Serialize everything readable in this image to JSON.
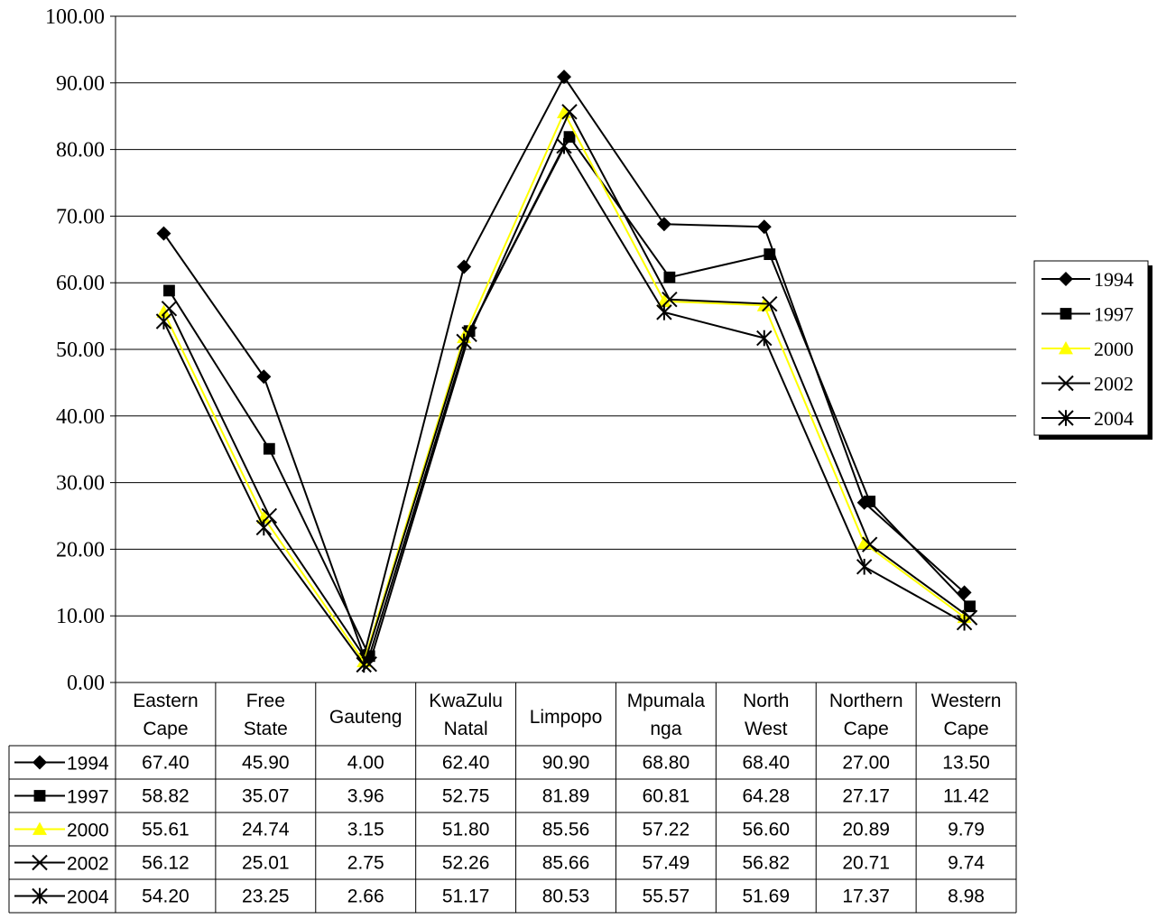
{
  "chart_data": {
    "type": "line",
    "title": "",
    "xlabel": "",
    "ylabel": "",
    "ylim": [
      0,
      100
    ],
    "yticks": [
      "0.00",
      "10.00",
      "20.00",
      "30.00",
      "40.00",
      "50.00",
      "60.00",
      "70.00",
      "80.00",
      "90.00",
      "100.00"
    ],
    "grid": true,
    "legend": "right",
    "categories": [
      [
        "Eastern",
        "Cape"
      ],
      [
        "Free",
        "State"
      ],
      [
        "Gauteng"
      ],
      [
        "KwaZulu",
        "Natal"
      ],
      [
        "Limpopo"
      ],
      [
        "Mpumala",
        "nga"
      ],
      [
        "North",
        "West"
      ],
      [
        "Northern",
        "Cape"
      ],
      [
        "Western",
        "Cape"
      ]
    ],
    "series": [
      {
        "name": "1994",
        "marker": "diamond",
        "color": "#000000",
        "values": [
          67.4,
          45.9,
          4.0,
          62.4,
          90.9,
          68.8,
          68.4,
          27.0,
          13.5
        ],
        "labels": [
          "67.40",
          "45.90",
          "4.00",
          "62.40",
          "90.90",
          "68.80",
          "68.40",
          "27.00",
          "13.50"
        ]
      },
      {
        "name": "1997",
        "marker": "square",
        "color": "#000000",
        "values": [
          58.82,
          35.07,
          3.96,
          52.75,
          81.89,
          60.81,
          64.28,
          27.17,
          11.42
        ],
        "labels": [
          "58.82",
          "35.07",
          "3.96",
          "52.75",
          "81.89",
          "60.81",
          "64.28",
          "27.17",
          "11.42"
        ]
      },
      {
        "name": "2000",
        "marker": "triangle",
        "color": "#ffff00",
        "values": [
          55.61,
          24.74,
          3.15,
          51.8,
          85.56,
          57.22,
          56.6,
          20.89,
          9.79
        ],
        "labels": [
          "55.61",
          "24.74",
          "3.15",
          "51.80",
          "85.56",
          "57.22",
          "56.60",
          "20.89",
          "9.79"
        ]
      },
      {
        "name": "2002",
        "marker": "x",
        "color": "#000000",
        "values": [
          56.12,
          25.01,
          2.75,
          52.26,
          85.66,
          57.49,
          56.82,
          20.71,
          9.74
        ],
        "labels": [
          "56.12",
          "25.01",
          "2.75",
          "52.26",
          "85.66",
          "57.49",
          "56.82",
          "20.71",
          "9.74"
        ]
      },
      {
        "name": "2004",
        "marker": "star",
        "color": "#000000",
        "values": [
          54.2,
          23.25,
          2.66,
          51.17,
          80.53,
          55.57,
          51.69,
          17.37,
          8.98
        ],
        "labels": [
          "54.20",
          "23.25",
          "2.66",
          "51.17",
          "80.53",
          "55.57",
          "51.69",
          "17.37",
          "8.98"
        ]
      }
    ]
  }
}
